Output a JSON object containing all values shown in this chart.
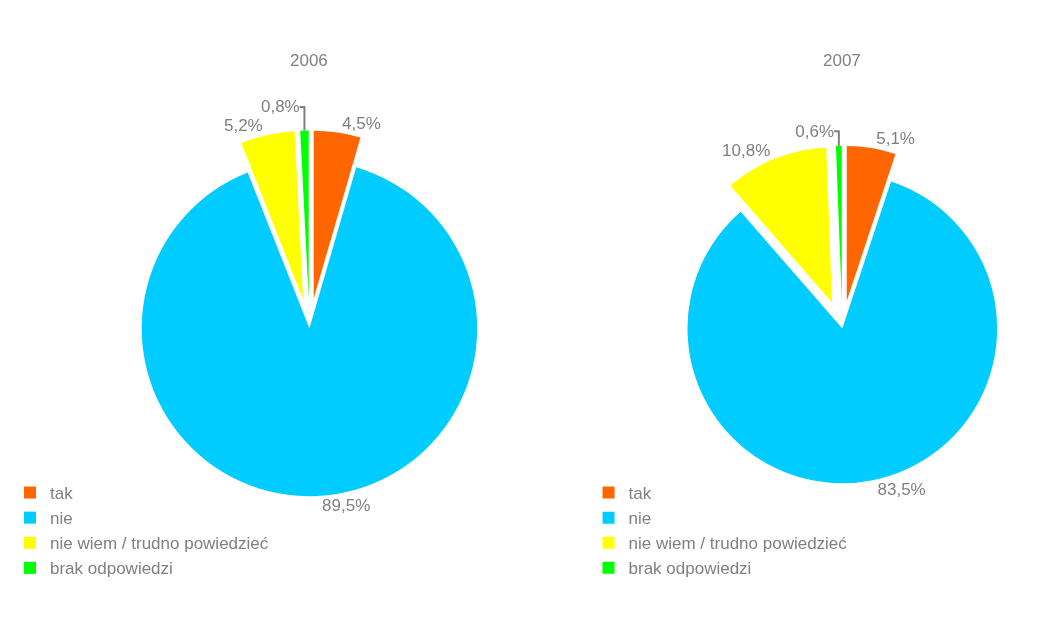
{
  "chart_data": [
    {
      "type": "pie",
      "title": "2006",
      "categories": [
        "tak",
        "nie",
        "nie wiem / trudno powiedzieć",
        "brak odpowiedzi"
      ],
      "values": [
        4.5,
        89.5,
        5.2,
        0.8
      ],
      "value_labels": [
        "4,5%",
        "89,5%",
        "5,2%",
        "0,8%"
      ],
      "colors": [
        "#ff6600",
        "#00ccff",
        "#ffff00",
        "#00ff00"
      ],
      "legend": "bottom left"
    },
    {
      "type": "pie",
      "title": "2007",
      "categories": [
        "tak",
        "nie",
        "nie wiem / trudno powiedzieć",
        "brak odpowiedzi"
      ],
      "values": [
        5.1,
        83.5,
        10.8,
        0.6
      ],
      "value_labels": [
        "5,1%",
        "83,5%",
        "10,8%",
        "0,6%"
      ],
      "colors": [
        "#ff6600",
        "#00ccff",
        "#ffff00",
        "#00ff00"
      ],
      "legend": "bottom left"
    }
  ]
}
